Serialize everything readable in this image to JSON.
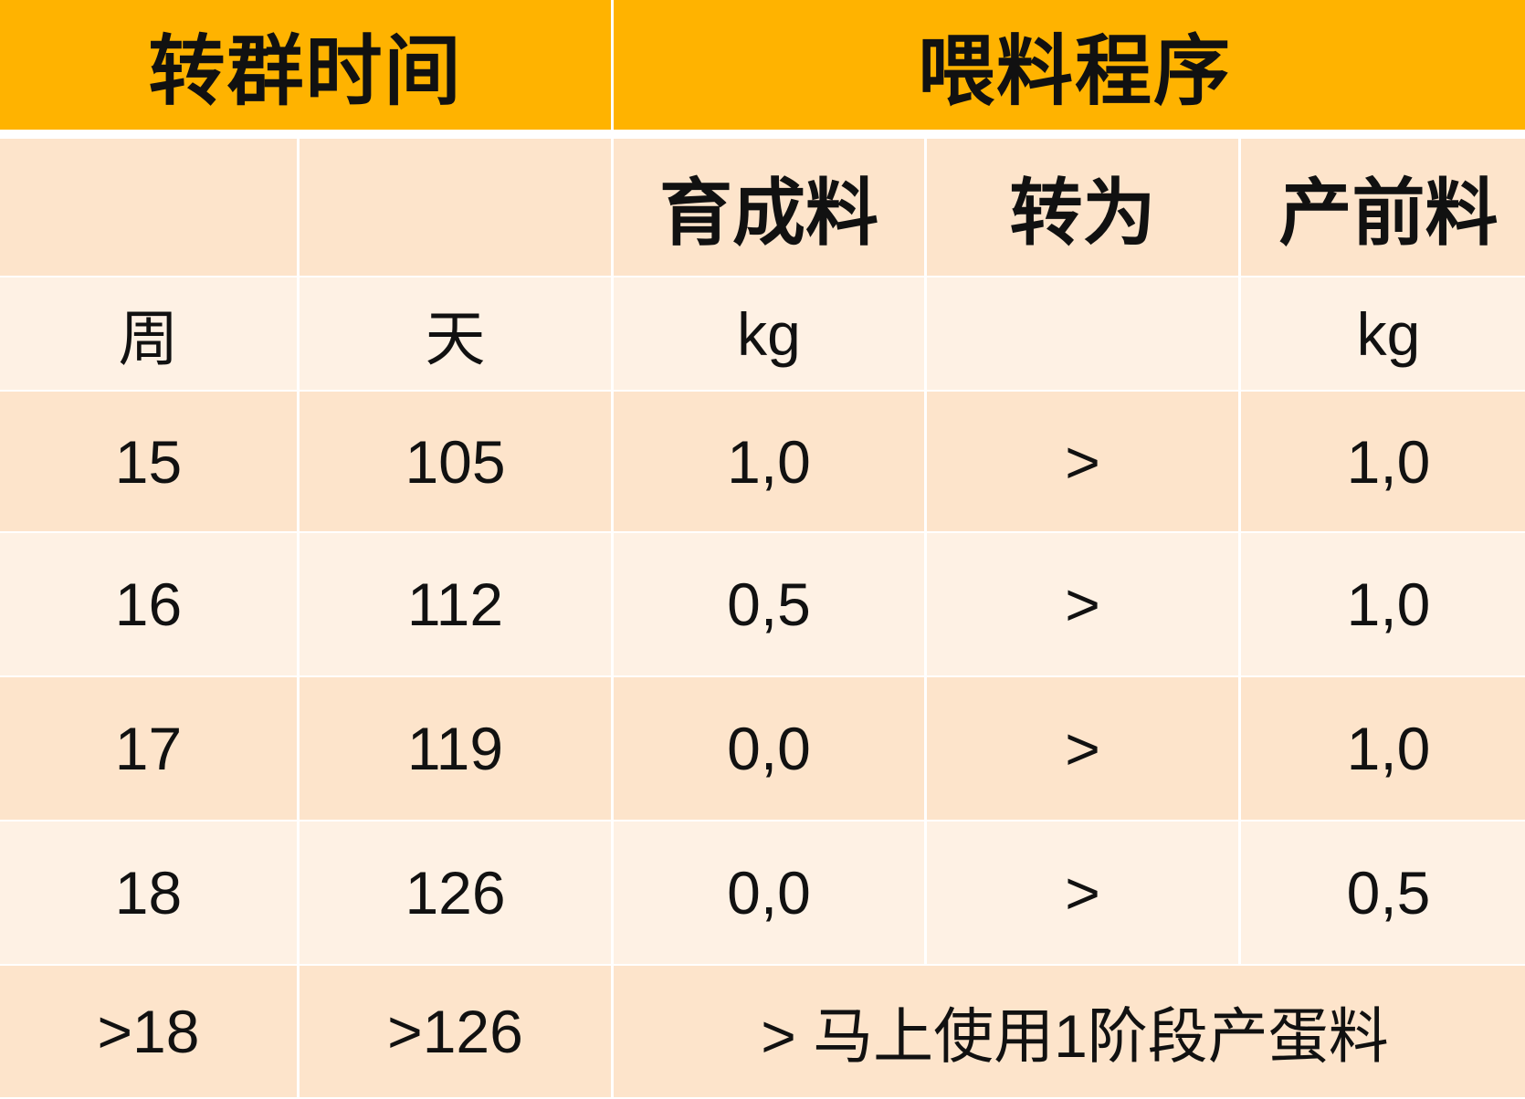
{
  "header": {
    "group1": "转群时间",
    "group2": "喂料程序"
  },
  "subheader": {
    "col3": "育成料",
    "col4": "转为",
    "col5": "产前料"
  },
  "units": {
    "week": "周",
    "day": "天",
    "kg1": "kg",
    "kg2": "kg"
  },
  "rows": [
    {
      "week": "15",
      "day": "105",
      "grower": "1,0",
      "arrow": ">",
      "prelay": "1,0"
    },
    {
      "week": "16",
      "day": "112",
      "grower": "0,5",
      "arrow": ">",
      "prelay": "1,0"
    },
    {
      "week": "17",
      "day": "119",
      "grower": "0,0",
      "arrow": ">",
      "prelay": "1,0"
    },
    {
      "week": "18",
      "day": "126",
      "grower": "0,0",
      "arrow": ">",
      "prelay": "0,5"
    }
  ],
  "last_row": {
    "week": ">18",
    "day": ">126",
    "note": "> 马上使用1阶段产蛋料"
  },
  "colors": {
    "header": "#FFB300",
    "row_dark": "#FDE4CB",
    "row_light": "#FEF1E4"
  }
}
